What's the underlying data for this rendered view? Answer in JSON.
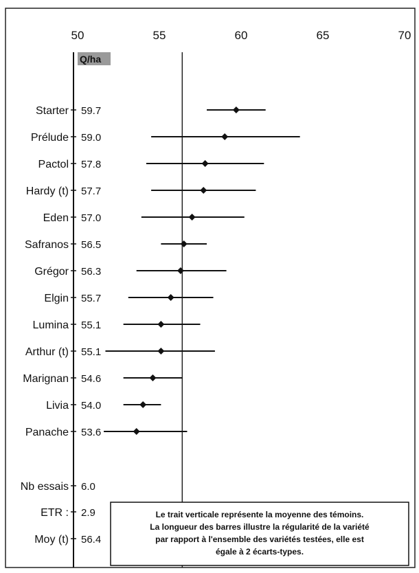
{
  "chart_data": {
    "type": "dot-errorbar",
    "column_header": "Q/ha",
    "xlim": [
      50,
      70
    ],
    "xticks": [
      50,
      55,
      60,
      65,
      70
    ],
    "reference_line": 56.4,
    "varieties": [
      {
        "name": "Starter",
        "value": 59.7,
        "value_label": "59.7",
        "low": 57.9,
        "high": 61.5
      },
      {
        "name": "Prélude",
        "value": 59.0,
        "value_label": "59.0",
        "low": 54.5,
        "high": 63.6
      },
      {
        "name": "Pactol",
        "value": 57.8,
        "value_label": "57.8",
        "low": 54.2,
        "high": 61.4
      },
      {
        "name": "Hardy  (t)",
        "value": 57.7,
        "value_label": "57.7",
        "low": 54.5,
        "high": 60.9
      },
      {
        "name": "Eden",
        "value": 57.0,
        "value_label": "57.0",
        "low": 53.9,
        "high": 60.2
      },
      {
        "name": "Safranos",
        "value": 56.5,
        "value_label": "56.5",
        "low": 55.1,
        "high": 57.9
      },
      {
        "name": "Grégor",
        "value": 56.3,
        "value_label": "56.3",
        "low": 53.6,
        "high": 59.1
      },
      {
        "name": "Elgin",
        "value": 55.7,
        "value_label": "55.7",
        "low": 53.1,
        "high": 58.3
      },
      {
        "name": "Lumina",
        "value": 55.1,
        "value_label": "55.1",
        "low": 52.8,
        "high": 57.5
      },
      {
        "name": "Arthur (t)",
        "value": 55.1,
        "value_label": "55.1",
        "low": 51.7,
        "high": 58.4
      },
      {
        "name": "Marignan",
        "value": 54.6,
        "value_label": "54.6",
        "low": 52.8,
        "high": 56.4
      },
      {
        "name": "Livia",
        "value": 54.0,
        "value_label": "54.0",
        "low": 52.8,
        "high": 55.1
      },
      {
        "name": "Panache",
        "value": 53.6,
        "value_label": "53.6",
        "low": 51.6,
        "high": 56.7
      }
    ],
    "stats": [
      {
        "label": "Nb essais",
        "value": "6.0"
      },
      {
        "label": "ETR :",
        "value": "2.9"
      },
      {
        "label": "Moy (t)",
        "value": "56.4"
      }
    ],
    "note_lines": [
      "Le trait verticale représente la moyenne des témoins.",
      "La longueur des barres illustre la régularité de la variété",
      "par rapport à l'ensemble des variétés testées, elle est",
      "égale à 2 écarts-types."
    ]
  }
}
